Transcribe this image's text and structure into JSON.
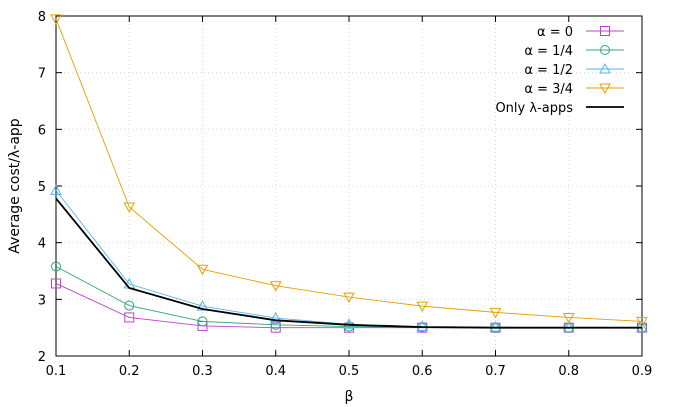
{
  "chart_data": {
    "type": "line",
    "title": "",
    "xlabel": "β",
    "ylabel": "Average cost/λ-app",
    "xlim": [
      0.1,
      0.9
    ],
    "ylim": [
      2,
      8
    ],
    "x": [
      0.1,
      0.2,
      0.3,
      0.4,
      0.5,
      0.6,
      0.7,
      0.8,
      0.9
    ],
    "x_ticks": [
      "0.1",
      "0.2",
      "0.3",
      "0.4",
      "0.5",
      "0.6",
      "0.7",
      "0.8",
      "0.9"
    ],
    "y_ticks": [
      "2",
      "3",
      "4",
      "5",
      "6",
      "7",
      "8"
    ],
    "grid": true,
    "legend_position": "top-right",
    "series": [
      {
        "name": "α = 0",
        "color": "#c040d0",
        "marker": "square",
        "values": [
          3.28,
          2.68,
          2.53,
          2.5,
          2.5,
          2.5,
          2.5,
          2.5,
          2.5
        ]
      },
      {
        "name": "α = 1/4",
        "color": "#2aa876",
        "marker": "circle",
        "values": [
          3.58,
          2.89,
          2.61,
          2.55,
          2.52,
          2.51,
          2.5,
          2.5,
          2.5
        ]
      },
      {
        "name": "α = 1/2",
        "color": "#56b4e9",
        "marker": "triangle-up",
        "values": [
          4.92,
          3.27,
          2.88,
          2.67,
          2.56,
          2.52,
          2.51,
          2.5,
          2.5
        ]
      },
      {
        "name": "α = 3/4",
        "color": "#e69f00",
        "marker": "triangle-down",
        "values": [
          7.95,
          4.63,
          3.53,
          3.24,
          3.04,
          2.88,
          2.77,
          2.68,
          2.61
        ]
      },
      {
        "name": "Only λ-apps",
        "color": "#000000",
        "marker": "none",
        "values": [
          4.78,
          3.2,
          2.83,
          2.63,
          2.55,
          2.51,
          2.5,
          2.5,
          2.5
        ]
      }
    ]
  }
}
